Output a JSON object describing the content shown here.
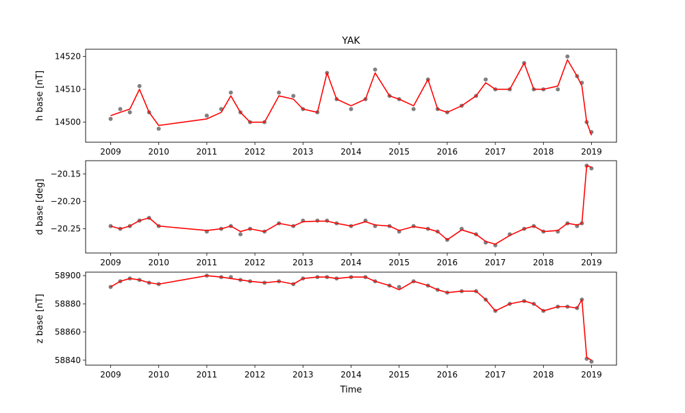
{
  "chart_data": {
    "title": "YAK",
    "type": "scatter",
    "xlabel": "Time",
    "x_ticks": [
      "2009",
      "2010",
      "2011",
      "2012",
      "2013",
      "2014",
      "2015",
      "2016",
      "2017",
      "2018",
      "2019"
    ],
    "colors": {
      "points": "#808080",
      "line": "#ff0000"
    },
    "panels": [
      {
        "ylabel": "h base [nT]",
        "ylim": [
          14493.9,
          14522.2
        ],
        "yticks": [
          14500,
          14510,
          14520
        ],
        "tick_labels": [
          "14500",
          "14510",
          "14520"
        ],
        "series": [
          {
            "type": "scatter",
            "x": [
              2009.0,
              2009.2,
              2009.4,
              2009.6,
              2009.8,
              2010.0,
              2011.0,
              2011.3,
              2011.5,
              2011.7,
              2011.9,
              2012.2,
              2012.5,
              2012.8,
              2013.0,
              2013.3,
              2013.5,
              2013.7,
              2014.0,
              2014.3,
              2014.5,
              2014.8,
              2015.0,
              2015.3,
              2015.6,
              2015.8,
              2016.0,
              2016.3,
              2016.6,
              2016.8,
              2017.0,
              2017.3,
              2017.6,
              2017.8,
              2018.0,
              2018.3,
              2018.5,
              2018.7,
              2018.8,
              2018.9,
              2019.0
            ],
            "y": [
              14501,
              14504,
              14503,
              14511,
              14503,
              14498,
              14502,
              14504,
              14509,
              14503,
              14500,
              14500,
              14509,
              14508,
              14504,
              14503,
              14515,
              14507,
              14504,
              14507,
              14516,
              14508,
              14507,
              14504,
              14513,
              14504,
              14503,
              14505,
              14508,
              14513,
              14510,
              14510,
              14518,
              14510,
              14510,
              14510,
              14520,
              14514,
              14512,
              14500,
              14497
            ]
          },
          {
            "type": "line",
            "x": [
              2009.0,
              2009.2,
              2009.4,
              2009.6,
              2009.8,
              2010.0,
              2011.0,
              2011.3,
              2011.5,
              2011.7,
              2011.9,
              2012.2,
              2012.5,
              2012.8,
              2013.0,
              2013.3,
              2013.5,
              2013.7,
              2014.0,
              2014.3,
              2014.5,
              2014.8,
              2015.0,
              2015.3,
              2015.6,
              2015.8,
              2016.0,
              2016.3,
              2016.6,
              2016.8,
              2017.0,
              2017.3,
              2017.6,
              2017.8,
              2018.0,
              2018.3,
              2018.5,
              2018.7,
              2018.8,
              2018.9,
              2019.0
            ],
            "y": [
              14502,
              14503,
              14504,
              14510,
              14503,
              14499,
              14501,
              14503,
              14508,
              14503,
              14500,
              14500,
              14508,
              14507,
              14504,
              14503,
              14515,
              14507,
              14505,
              14507,
              14515,
              14508,
              14507,
              14505,
              14513,
              14504,
              14503,
              14505,
              14508,
              14512,
              14510,
              14510,
              14518,
              14510,
              14510,
              14511,
              14519,
              14514,
              14511,
              14500,
              14496
            ]
          }
        ]
      },
      {
        "ylabel": "d base [deg]",
        "ylim": [
          -20.294,
          -20.126
        ],
        "yticks": [
          -20.25,
          -20.2,
          -20.15
        ],
        "tick_labels": [
          "−20.25",
          "−20.20",
          "−20.15"
        ],
        "series": [
          {
            "type": "scatter",
            "x": [
              2009.0,
              2009.2,
              2009.4,
              2009.6,
              2009.8,
              2010.0,
              2011.0,
              2011.3,
              2011.5,
              2011.7,
              2011.9,
              2012.2,
              2012.5,
              2012.8,
              2013.0,
              2013.3,
              2013.5,
              2013.7,
              2014.0,
              2014.3,
              2014.5,
              2014.8,
              2015.0,
              2015.3,
              2015.6,
              2015.8,
              2016.0,
              2016.3,
              2016.6,
              2016.8,
              2017.0,
              2017.3,
              2017.6,
              2017.8,
              2018.0,
              2018.3,
              2018.5,
              2018.7,
              2018.8,
              2018.9,
              2019.0
            ],
            "y": [
              -20.245,
              -20.25,
              -20.245,
              -20.235,
              -20.23,
              -20.245,
              -20.255,
              -20.25,
              -20.245,
              -20.26,
              -20.25,
              -20.255,
              -20.24,
              -20.245,
              -20.235,
              -20.235,
              -20.235,
              -20.24,
              -20.245,
              -20.235,
              -20.245,
              -20.245,
              -20.255,
              -20.245,
              -20.25,
              -20.255,
              -20.27,
              -20.25,
              -20.26,
              -20.275,
              -20.28,
              -20.26,
              -20.25,
              -20.245,
              -20.255,
              -20.255,
              -20.24,
              -20.245,
              -20.24,
              -20.135,
              -20.14
            ]
          },
          {
            "type": "line",
            "x": [
              2009.0,
              2009.2,
              2009.4,
              2009.6,
              2009.8,
              2010.0,
              2011.0,
              2011.3,
              2011.5,
              2011.7,
              2011.9,
              2012.2,
              2012.5,
              2012.8,
              2013.0,
              2013.3,
              2013.5,
              2013.7,
              2014.0,
              2014.3,
              2014.5,
              2014.8,
              2015.0,
              2015.3,
              2015.6,
              2015.8,
              2016.0,
              2016.3,
              2016.6,
              2016.8,
              2017.0,
              2017.3,
              2017.6,
              2017.8,
              2018.0,
              2018.3,
              2018.5,
              2018.7,
              2018.8,
              2018.9,
              2019.0
            ],
            "y": [
              -20.245,
              -20.25,
              -20.245,
              -20.235,
              -20.23,
              -20.245,
              -20.253,
              -20.25,
              -20.245,
              -20.255,
              -20.25,
              -20.255,
              -20.24,
              -20.245,
              -20.237,
              -20.236,
              -20.236,
              -20.24,
              -20.245,
              -20.237,
              -20.243,
              -20.245,
              -20.253,
              -20.246,
              -20.25,
              -20.255,
              -20.27,
              -20.252,
              -20.26,
              -20.273,
              -20.278,
              -20.262,
              -20.25,
              -20.245,
              -20.255,
              -20.253,
              -20.24,
              -20.243,
              -20.24,
              -20.135,
              -20.138
            ]
          }
        ]
      },
      {
        "ylabel": "z base [nT]",
        "ylim": [
          58836.5,
          58902.5
        ],
        "yticks": [
          58840,
          58860,
          58880,
          58900
        ],
        "tick_labels": [
          "58840",
          "58860",
          "58880",
          "58900"
        ],
        "series": [
          {
            "type": "scatter",
            "x": [
              2009.0,
              2009.2,
              2009.4,
              2009.6,
              2009.8,
              2010.0,
              2011.0,
              2011.3,
              2011.5,
              2011.7,
              2011.9,
              2012.2,
              2012.5,
              2012.8,
              2013.0,
              2013.3,
              2013.5,
              2013.7,
              2014.0,
              2014.3,
              2014.5,
              2014.8,
              2015.0,
              2015.3,
              2015.6,
              2015.8,
              2016.0,
              2016.3,
              2016.6,
              2016.8,
              2017.0,
              2017.3,
              2017.6,
              2017.8,
              2018.0,
              2018.3,
              2018.5,
              2018.7,
              2018.8,
              2018.9,
              2019.0
            ],
            "y": [
              58892,
              58896,
              58898,
              58897,
              58895,
              58894,
              58900,
              58899,
              58899,
              58897,
              58896,
              58895,
              58896,
              58894,
              58898,
              58899,
              58899,
              58898,
              58899,
              58899,
              58896,
              58893,
              58892,
              58896,
              58893,
              58890,
              58888,
              58889,
              58889,
              58883,
              58875,
              58880,
              58882,
              58880,
              58875,
              58878,
              58878,
              58877,
              58883,
              58841,
              58839
            ]
          },
          {
            "type": "line",
            "x": [
              2009.0,
              2009.2,
              2009.4,
              2009.6,
              2009.8,
              2010.0,
              2011.0,
              2011.3,
              2011.5,
              2011.7,
              2011.9,
              2012.2,
              2012.5,
              2012.8,
              2013.0,
              2013.3,
              2013.5,
              2013.7,
              2014.0,
              2014.3,
              2014.5,
              2014.8,
              2015.0,
              2015.3,
              2015.6,
              2015.8,
              2016.0,
              2016.3,
              2016.6,
              2016.8,
              2017.0,
              2017.3,
              2017.6,
              2017.8,
              2018.0,
              2018.3,
              2018.5,
              2018.7,
              2018.8,
              2018.9,
              2019.0
            ],
            "y": [
              58892,
              58896,
              58898,
              58897,
              58895,
              58894,
              58900,
              58899,
              58898,
              58897,
              58896,
              58895,
              58896,
              58894,
              58898,
              58899,
              58899,
              58898,
              58899,
              58899,
              58896,
              58893,
              58890,
              58896,
              58893,
              58890,
              58888,
              58889,
              58889,
              58883,
              58875,
              58880,
              58882,
              58880,
              58875,
              58878,
              58878,
              58877,
              58883,
              58842,
              58840
            ]
          }
        ]
      }
    ]
  }
}
